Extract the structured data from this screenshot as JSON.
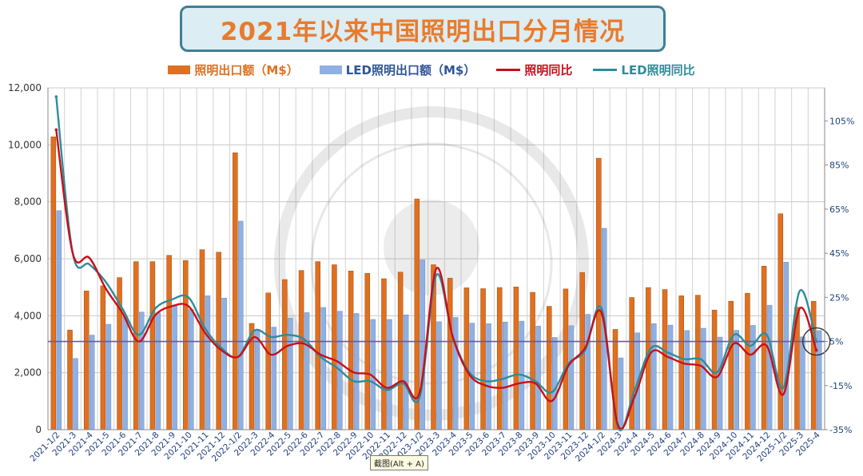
{
  "title": "2021年以来中国照明出口分月情况",
  "legend": [
    {
      "label": "照明出口额（M$）",
      "kind": "bar",
      "color": "#e0701f"
    },
    {
      "label": "LED照明出口额（M$）",
      "kind": "bar",
      "color": "#8fb0e3"
    },
    {
      "label": "照明同比",
      "kind": "line",
      "color": "#c8101a"
    },
    {
      "label": "LED照明同比",
      "kind": "line",
      "color": "#2e8c9c"
    }
  ],
  "tooltip": "截图(Alt + A)",
  "chart_data": {
    "type": "bar",
    "categories": [
      "2021-1/2",
      "2021-3",
      "2021-4",
      "2021-5",
      "2021-6",
      "2021-7",
      "2021-8",
      "2021-9",
      "2021-10",
      "2021-11",
      "2021-12",
      "2022-1/2",
      "2022-3",
      "2022-4",
      "2022-5",
      "2022-6",
      "2022-7",
      "2022-8",
      "2022-9",
      "2022-10",
      "2022-11",
      "2022-12",
      "2023-1/2",
      "2023-3",
      "2023-4",
      "2023-5",
      "2023-6",
      "2023-7",
      "2023-8",
      "2023-9",
      "2023-10",
      "2023-11",
      "2023-12",
      "2024-1/2",
      "2024-3",
      "2024-4",
      "2024-5",
      "2024-6",
      "2024-7",
      "2024-8",
      "2024-9",
      "2024-10",
      "2024-11",
      "2024-12",
      "2025-1/2",
      "2025-3",
      "2025-4"
    ],
    "y_left": {
      "min": 0,
      "max": 12000,
      "ticks": [
        "0",
        "2,000",
        "4,000",
        "6,000",
        "8,000",
        "10,000",
        "12,000"
      ],
      "tick_values": [
        0,
        2000,
        4000,
        6000,
        8000,
        10000,
        12000
      ]
    },
    "y_right": {
      "min": -35,
      "max": 120,
      "ticks": [
        "-35%",
        "-15%",
        "5%",
        "25%",
        "45%",
        "65%",
        "85%",
        "105%"
      ],
      "tick_values": [
        -35,
        -15,
        5,
        25,
        45,
        65,
        85,
        105
      ]
    },
    "grid": true,
    "reference_line": {
      "axis": "right",
      "value": 5,
      "color": "#6a52c8"
    },
    "highlight_circle": {
      "category": "2025-4"
    },
    "series": [
      {
        "name": "照明出口额（M$）",
        "type": "bar",
        "axis": "left",
        "color": "#e0701f",
        "values": [
          10280,
          3500,
          4870,
          5050,
          5340,
          5900,
          5900,
          6120,
          5940,
          6320,
          6230,
          9720,
          3730,
          4800,
          5270,
          5590,
          5900,
          5790,
          5570,
          5490,
          5300,
          5530,
          8100,
          5790,
          5320,
          4980,
          4950,
          4990,
          5010,
          4820,
          4330,
          4940,
          5520,
          9530,
          3520,
          4640,
          4990,
          4920,
          4700,
          4720,
          4200,
          4510,
          4790,
          5740,
          7580,
          4300,
          4510
        ]
      },
      {
        "name": "LED照明出口额（M$）",
        "type": "bar",
        "axis": "left",
        "color": "#8fb0e3",
        "values": [
          7690,
          2500,
          3320,
          3700,
          3970,
          4130,
          4100,
          4380,
          4220,
          4700,
          4620,
          7320,
          3490,
          3600,
          3920,
          4110,
          4290,
          4160,
          4080,
          3870,
          3870,
          4030,
          5960,
          3790,
          3940,
          3740,
          3720,
          3780,
          3810,
          3640,
          3240,
          3650,
          4050,
          7070,
          2520,
          3400,
          3720,
          3670,
          3480,
          3560,
          3250,
          3490,
          3660,
          4370,
          5880,
          3260,
          3480
        ]
      },
      {
        "name": "照明同比",
        "type": "line",
        "axis": "right",
        "color": "#c8101a",
        "values": [
          101,
          45,
          43,
          29,
          18,
          5,
          17,
          21,
          21,
          9,
          1,
          -2,
          7,
          -1,
          3,
          4,
          -1,
          -4,
          -9,
          -10,
          -16,
          -13,
          -18,
          38,
          7,
          -10,
          -15,
          -16,
          -14,
          -14,
          -22,
          -6,
          2,
          18,
          -33,
          -20,
          0,
          -2,
          -5,
          -6,
          -11,
          4,
          -1,
          3,
          -19,
          20,
          1
        ]
      },
      {
        "name": "LED照明同比",
        "type": "line",
        "axis": "right",
        "color": "#2e8c9c",
        "values": [
          116,
          45,
          40,
          32,
          20,
          8,
          20,
          24,
          25,
          11,
          2,
          -2,
          10,
          7,
          8,
          6,
          -2,
          -7,
          -13,
          -13,
          -17,
          -14,
          -20,
          35,
          7,
          -9,
          -13,
          -12,
          -10,
          -13,
          -18,
          -5,
          1,
          20,
          -34,
          -17,
          2,
          0,
          -3,
          -3,
          -9,
          8,
          3,
          8,
          -16,
          28,
          5
        ]
      }
    ]
  }
}
